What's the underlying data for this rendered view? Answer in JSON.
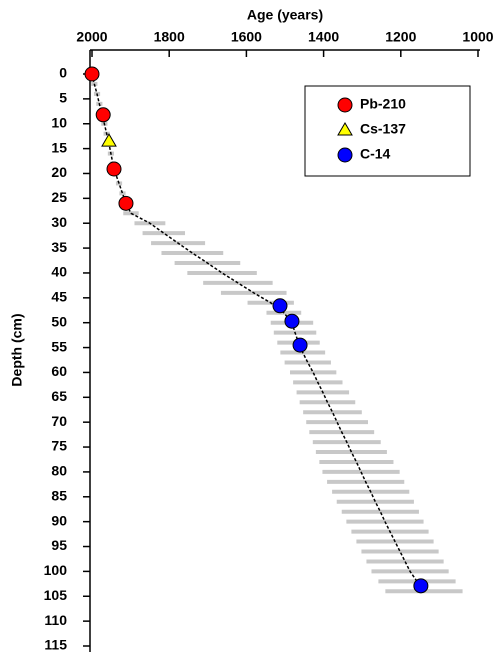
{
  "chart_data": {
    "type": "scatter",
    "title": "Age (years)",
    "y_label": "Depth (cm)",
    "xlim": [
      2000,
      1000
    ],
    "xticks": [
      2000,
      1800,
      1600,
      1400,
      1200,
      1000
    ],
    "ylim": [
      0,
      115
    ],
    "yticks": [
      0,
      5,
      10,
      15,
      20,
      25,
      30,
      35,
      40,
      45,
      50,
      55,
      60,
      65,
      70,
      75,
      80,
      85,
      90,
      95,
      100,
      105,
      110,
      115
    ],
    "legend": "top-right",
    "series": [
      {
        "name": "Pb-210",
        "color": "#ff0000",
        "marker": "circle",
        "x": [
          2000,
          1971,
          1943,
          1912
        ],
        "y": [
          0,
          8.2,
          19.1,
          26
        ]
      },
      {
        "name": "Cs-137",
        "color": "#ffff00",
        "marker": "triangle",
        "x": [
          1956
        ],
        "y": [
          13.5
        ]
      },
      {
        "name": "C-14",
        "color": "#0000ff",
        "marker": "circle",
        "x": [
          1513,
          1482,
          1461,
          1148
        ],
        "y": [
          46.6,
          49.7,
          54.5,
          102.9
        ]
      }
    ],
    "model": {
      "color": "#c8c8c8",
      "depth": [
        0,
        2,
        4,
        6,
        8,
        10,
        12,
        14,
        16,
        18,
        20,
        22,
        24,
        26,
        28,
        30,
        32,
        34,
        36,
        38,
        40,
        42,
        44,
        46,
        48,
        50,
        52,
        54,
        56,
        58,
        60,
        62,
        64,
        66,
        68,
        70,
        72,
        74,
        76,
        78,
        80,
        82,
        84,
        86,
        88,
        90,
        92,
        94,
        96,
        98,
        100,
        102,
        104
      ],
      "age": [
        2000,
        1994,
        1987,
        1981,
        1974,
        1968,
        1962,
        1956,
        1951,
        1946,
        1939,
        1930,
        1921,
        1912,
        1899,
        1850,
        1814,
        1777,
        1740,
        1701,
        1663,
        1622,
        1581,
        1537,
        1503,
        1482,
        1474,
        1465,
        1454,
        1441,
        1427,
        1415,
        1402,
        1390,
        1377,
        1365,
        1353,
        1340,
        1328,
        1315,
        1303,
        1291,
        1278,
        1266,
        1253,
        1241,
        1228,
        1215,
        1202,
        1189,
        1176,
        1158,
        1140
      ],
      "error": [
        8,
        8,
        8,
        8,
        8,
        8,
        8,
        8,
        8,
        8,
        8,
        8,
        8,
        8,
        20,
        40,
        55,
        70,
        80,
        85,
        90,
        90,
        85,
        60,
        45,
        55,
        55,
        55,
        58,
        60,
        60,
        64,
        68,
        72,
        76,
        80,
        84,
        88,
        92,
        96,
        100,
        100,
        100,
        100,
        100,
        100,
        100,
        100,
        100,
        100,
        100,
        100,
        100
      ]
    }
  }
}
